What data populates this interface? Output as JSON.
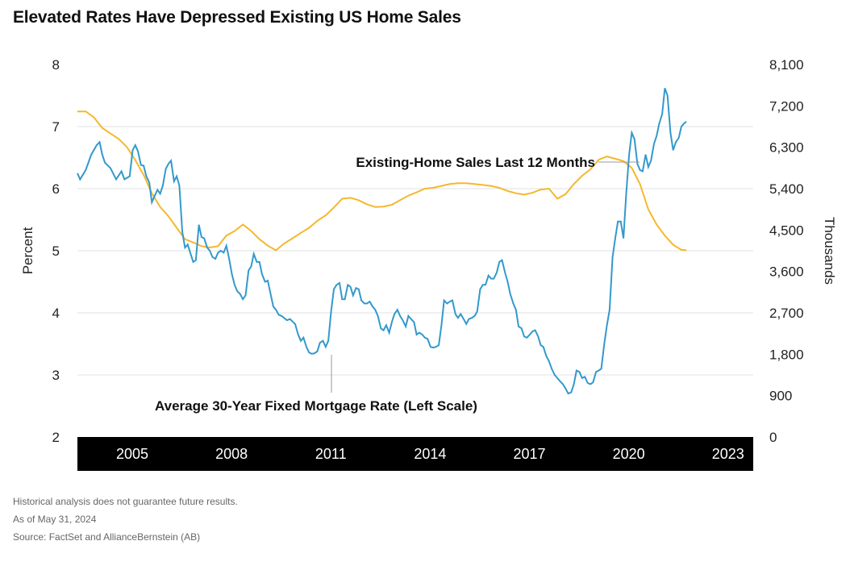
{
  "title": "Elevated Rates Have Depressed Existing US Home Sales",
  "footnotes": {
    "disclaimer": "Historical analysis does not guarantee future results.",
    "as_of": "As of May 31, 2024",
    "source": "Source: FactSet and AllianceBernstein (AB)"
  },
  "colors": {
    "rate": "#3399cc",
    "sales": "#f5b82e",
    "axis_band": "#000000",
    "grid": "#e0e0e0"
  },
  "chart_data": {
    "type": "line",
    "title": "Elevated Rates Have Depressed Existing US Home Sales",
    "ylabel_left": "Percent",
    "ylabel_right": "Thousands",
    "ylim_left": [
      2,
      8
    ],
    "ylim_right": [
      0,
      8100
    ],
    "yticks_left": [
      "2",
      "3",
      "4",
      "5",
      "6",
      "7",
      "8"
    ],
    "yticks_right": [
      "0",
      "900",
      "1,800",
      "2,700",
      "3,600",
      "4,500",
      "5,400",
      "6,300",
      "7,200",
      "8,100"
    ],
    "xticks": [
      {
        "label": "2005",
        "x": 2005.0
      },
      {
        "label": "2008",
        "x": 2008.0
      },
      {
        "label": "2011",
        "x": 2011.0
      },
      {
        "label": "2014",
        "x": 2014.0
      },
      {
        "label": "2017",
        "x": 2017.0
      },
      {
        "label": "2020",
        "x": 2020.0
      },
      {
        "label": "2023",
        "x": 2023.0
      }
    ],
    "xlim": [
      2004.0,
      2024.42
    ],
    "grid": "horizontal",
    "annotations": [
      {
        "text": "Existing-Home Sales Last 12 Months",
        "series": "sales"
      },
      {
        "text": "Average 30-Year Fixed Mortgage Rate (Left Scale)",
        "series": "rate"
      }
    ],
    "series": [
      {
        "key": "rate",
        "axis": "left",
        "points": [
          [
            2004.0,
            6.25
          ],
          [
            2004.08,
            6.15
          ],
          [
            2004.25,
            6.3
          ],
          [
            2004.42,
            6.55
          ],
          [
            2004.58,
            6.7
          ],
          [
            2004.67,
            6.75
          ],
          [
            2004.75,
            6.55
          ],
          [
            2004.83,
            6.42
          ],
          [
            2005.0,
            6.33
          ],
          [
            2005.17,
            6.15
          ],
          [
            2005.33,
            6.28
          ],
          [
            2005.42,
            6.15
          ],
          [
            2005.58,
            6.2
          ],
          [
            2005.67,
            6.62
          ],
          [
            2005.75,
            6.7
          ],
          [
            2005.83,
            6.6
          ],
          [
            2005.92,
            6.38
          ],
          [
            2006.0,
            6.37
          ],
          [
            2006.08,
            6.2
          ],
          [
            2006.17,
            6.1
          ],
          [
            2006.25,
            5.78
          ],
          [
            2006.33,
            5.88
          ],
          [
            2006.42,
            5.98
          ],
          [
            2006.5,
            5.92
          ],
          [
            2006.58,
            6.05
          ],
          [
            2006.67,
            6.32
          ],
          [
            2006.75,
            6.4
          ],
          [
            2006.83,
            6.45
          ],
          [
            2006.92,
            6.12
          ],
          [
            2007.0,
            6.2
          ],
          [
            2007.08,
            6.05
          ],
          [
            2007.17,
            5.3
          ],
          [
            2007.25,
            5.05
          ],
          [
            2007.33,
            5.1
          ],
          [
            2007.42,
            4.95
          ],
          [
            2007.5,
            4.82
          ],
          [
            2007.58,
            4.85
          ],
          [
            2007.67,
            5.42
          ],
          [
            2007.75,
            5.22
          ],
          [
            2007.83,
            5.2
          ],
          [
            2007.92,
            5.05
          ],
          [
            2008.0,
            5.0
          ],
          [
            2008.08,
            4.9
          ],
          [
            2008.17,
            4.87
          ],
          [
            2008.25,
            4.97
          ],
          [
            2008.33,
            5.0
          ],
          [
            2008.42,
            4.97
          ],
          [
            2008.5,
            5.08
          ],
          [
            2008.58,
            4.88
          ],
          [
            2008.67,
            4.62
          ],
          [
            2008.75,
            4.45
          ],
          [
            2008.83,
            4.35
          ],
          [
            2008.92,
            4.3
          ],
          [
            2009.0,
            4.22
          ],
          [
            2009.08,
            4.28
          ],
          [
            2009.17,
            4.68
          ],
          [
            2009.25,
            4.75
          ],
          [
            2009.33,
            4.95
          ],
          [
            2009.42,
            4.82
          ],
          [
            2009.5,
            4.82
          ],
          [
            2009.58,
            4.62
          ],
          [
            2009.67,
            4.5
          ],
          [
            2009.75,
            4.52
          ],
          [
            2009.83,
            4.32
          ],
          [
            2009.92,
            4.1
          ],
          [
            2010.0,
            4.05
          ],
          [
            2010.08,
            3.97
          ],
          [
            2010.17,
            3.95
          ],
          [
            2010.33,
            3.88
          ],
          [
            2010.42,
            3.9
          ],
          [
            2010.58,
            3.82
          ],
          [
            2010.67,
            3.65
          ],
          [
            2010.75,
            3.55
          ],
          [
            2010.83,
            3.6
          ],
          [
            2010.92,
            3.45
          ],
          [
            2011.0,
            3.36
          ],
          [
            2011.08,
            3.34
          ],
          [
            2011.17,
            3.35
          ],
          [
            2011.25,
            3.38
          ],
          [
            2011.33,
            3.52
          ],
          [
            2011.42,
            3.55
          ],
          [
            2011.5,
            3.45
          ],
          [
            2011.58,
            3.55
          ],
          [
            2011.67,
            4.05
          ],
          [
            2011.75,
            4.38
          ],
          [
            2011.83,
            4.45
          ],
          [
            2011.92,
            4.48
          ],
          [
            2012.0,
            4.22
          ],
          [
            2012.08,
            4.22
          ],
          [
            2012.17,
            4.45
          ],
          [
            2012.25,
            4.42
          ],
          [
            2012.33,
            4.28
          ],
          [
            2012.42,
            4.4
          ],
          [
            2012.5,
            4.38
          ],
          [
            2012.58,
            4.2
          ],
          [
            2012.67,
            4.15
          ],
          [
            2012.75,
            4.15
          ],
          [
            2012.83,
            4.18
          ],
          [
            2012.92,
            4.1
          ],
          [
            2013.0,
            4.05
          ],
          [
            2013.08,
            3.95
          ],
          [
            2013.17,
            3.75
          ],
          [
            2013.25,
            3.72
          ],
          [
            2013.33,
            3.8
          ],
          [
            2013.42,
            3.68
          ],
          [
            2013.5,
            3.85
          ],
          [
            2013.58,
            3.98
          ],
          [
            2013.67,
            4.05
          ],
          [
            2013.75,
            3.95
          ],
          [
            2013.83,
            3.88
          ],
          [
            2013.92,
            3.78
          ],
          [
            2014.0,
            3.95
          ],
          [
            2014.08,
            3.9
          ],
          [
            2014.17,
            3.85
          ],
          [
            2014.25,
            3.65
          ],
          [
            2014.33,
            3.68
          ],
          [
            2014.42,
            3.65
          ],
          [
            2014.5,
            3.6
          ],
          [
            2014.58,
            3.58
          ],
          [
            2014.67,
            3.45
          ],
          [
            2014.75,
            3.44
          ],
          [
            2014.83,
            3.45
          ],
          [
            2014.92,
            3.48
          ],
          [
            2015.0,
            3.8
          ],
          [
            2015.08,
            4.2
          ],
          [
            2015.17,
            4.15
          ],
          [
            2015.25,
            4.18
          ],
          [
            2015.33,
            4.2
          ],
          [
            2015.42,
            3.98
          ],
          [
            2015.5,
            3.92
          ],
          [
            2015.58,
            3.98
          ],
          [
            2015.67,
            3.9
          ],
          [
            2015.75,
            3.82
          ],
          [
            2015.83,
            3.9
          ],
          [
            2015.92,
            3.92
          ],
          [
            2016.0,
            3.95
          ],
          [
            2016.08,
            4.02
          ],
          [
            2016.17,
            4.38
          ],
          [
            2016.25,
            4.45
          ],
          [
            2016.33,
            4.45
          ],
          [
            2016.42,
            4.6
          ],
          [
            2016.5,
            4.55
          ],
          [
            2016.58,
            4.55
          ],
          [
            2016.67,
            4.65
          ],
          [
            2016.75,
            4.82
          ],
          [
            2016.83,
            4.85
          ],
          [
            2016.92,
            4.65
          ],
          [
            2017.0,
            4.5
          ],
          [
            2017.08,
            4.3
          ],
          [
            2017.17,
            4.15
          ],
          [
            2017.25,
            4.05
          ],
          [
            2017.33,
            3.78
          ],
          [
            2017.42,
            3.75
          ],
          [
            2017.5,
            3.62
          ],
          [
            2017.58,
            3.6
          ],
          [
            2017.67,
            3.65
          ],
          [
            2017.75,
            3.7
          ],
          [
            2017.83,
            3.72
          ],
          [
            2017.92,
            3.62
          ],
          [
            2018.0,
            3.48
          ],
          [
            2018.08,
            3.45
          ],
          [
            2018.17,
            3.3
          ],
          [
            2018.25,
            3.22
          ],
          [
            2018.33,
            3.1
          ],
          [
            2018.42,
            3.0
          ],
          [
            2018.5,
            2.95
          ],
          [
            2018.58,
            2.9
          ],
          [
            2018.67,
            2.85
          ],
          [
            2018.75,
            2.78
          ],
          [
            2018.83,
            2.7
          ],
          [
            2018.92,
            2.72
          ],
          [
            2019.0,
            2.85
          ],
          [
            2019.08,
            3.07
          ],
          [
            2019.17,
            3.05
          ],
          [
            2019.25,
            2.95
          ],
          [
            2019.33,
            2.97
          ],
          [
            2019.42,
            2.87
          ],
          [
            2019.5,
            2.85
          ],
          [
            2019.58,
            2.88
          ],
          [
            2019.67,
            3.05
          ],
          [
            2019.75,
            3.07
          ],
          [
            2019.83,
            3.1
          ],
          [
            2019.92,
            3.5
          ],
          [
            2020.0,
            3.8
          ],
          [
            2020.08,
            4.05
          ],
          [
            2020.17,
            4.9
          ],
          [
            2020.25,
            5.2
          ],
          [
            2020.33,
            5.47
          ],
          [
            2020.42,
            5.47
          ],
          [
            2020.5,
            5.2
          ],
          [
            2020.58,
            5.9
          ],
          [
            2020.67,
            6.55
          ],
          [
            2020.75,
            6.9
          ],
          [
            2020.83,
            6.8
          ],
          [
            2020.92,
            6.4
          ],
          [
            2021.0,
            6.3
          ],
          [
            2021.08,
            6.28
          ],
          [
            2021.17,
            6.55
          ],
          [
            2021.25,
            6.35
          ],
          [
            2021.33,
            6.45
          ],
          [
            2021.42,
            6.72
          ],
          [
            2021.5,
            6.85
          ],
          [
            2021.58,
            7.05
          ],
          [
            2021.67,
            7.2
          ],
          [
            2021.75,
            7.62
          ],
          [
            2021.83,
            7.5
          ],
          [
            2021.92,
            6.9
          ],
          [
            2022.0,
            6.62
          ],
          [
            2022.08,
            6.75
          ],
          [
            2022.17,
            6.82
          ],
          [
            2022.25,
            7.0
          ],
          [
            2022.33,
            7.05
          ],
          [
            2022.4,
            7.08
          ]
        ]
      },
      {
        "key": "sales",
        "axis": "right",
        "points": [
          [
            2004.0,
            7080
          ],
          [
            2004.25,
            7080
          ],
          [
            2004.5,
            6950
          ],
          [
            2004.75,
            6720
          ],
          [
            2005.0,
            6600
          ],
          [
            2005.25,
            6480
          ],
          [
            2005.5,
            6300
          ],
          [
            2005.75,
            6020
          ],
          [
            2006.0,
            5700
          ],
          [
            2006.25,
            5300
          ],
          [
            2006.5,
            5000
          ],
          [
            2006.75,
            4800
          ],
          [
            2007.0,
            4550
          ],
          [
            2007.25,
            4300
          ],
          [
            2007.5,
            4230
          ],
          [
            2007.75,
            4150
          ],
          [
            2008.0,
            4120
          ],
          [
            2008.25,
            4150
          ],
          [
            2008.5,
            4380
          ],
          [
            2008.75,
            4480
          ],
          [
            2009.0,
            4620
          ],
          [
            2009.25,
            4480
          ],
          [
            2009.5,
            4300
          ],
          [
            2009.75,
            4160
          ],
          [
            2010.0,
            4060
          ],
          [
            2010.25,
            4210
          ],
          [
            2010.5,
            4320
          ],
          [
            2010.75,
            4440
          ],
          [
            2011.0,
            4550
          ],
          [
            2011.25,
            4700
          ],
          [
            2011.5,
            4820
          ],
          [
            2011.75,
            4990
          ],
          [
            2012.0,
            5180
          ],
          [
            2012.25,
            5200
          ],
          [
            2012.5,
            5150
          ],
          [
            2012.75,
            5060
          ],
          [
            2013.0,
            5000
          ],
          [
            2013.25,
            5010
          ],
          [
            2013.5,
            5050
          ],
          [
            2013.75,
            5150
          ],
          [
            2014.0,
            5250
          ],
          [
            2014.25,
            5320
          ],
          [
            2014.5,
            5400
          ],
          [
            2014.75,
            5420
          ],
          [
            2015.0,
            5460
          ],
          [
            2015.25,
            5500
          ],
          [
            2015.5,
            5520
          ],
          [
            2015.75,
            5520
          ],
          [
            2016.0,
            5500
          ],
          [
            2016.25,
            5480
          ],
          [
            2016.5,
            5460
          ],
          [
            2016.75,
            5420
          ],
          [
            2017.0,
            5350
          ],
          [
            2017.25,
            5300
          ],
          [
            2017.5,
            5270
          ],
          [
            2017.75,
            5310
          ],
          [
            2018.0,
            5380
          ],
          [
            2018.25,
            5400
          ],
          [
            2018.5,
            5180
          ],
          [
            2018.75,
            5280
          ],
          [
            2019.0,
            5500
          ],
          [
            2019.25,
            5680
          ],
          [
            2019.5,
            5820
          ],
          [
            2019.75,
            6030
          ],
          [
            2020.0,
            6100
          ],
          [
            2020.25,
            6050
          ],
          [
            2020.5,
            6000
          ],
          [
            2020.75,
            5850
          ],
          [
            2021.0,
            5500
          ],
          [
            2021.25,
            4950
          ],
          [
            2021.5,
            4620
          ],
          [
            2021.75,
            4380
          ],
          [
            2022.0,
            4180
          ],
          [
            2022.25,
            4070
          ],
          [
            2022.4,
            4060
          ]
        ]
      }
    ]
  }
}
